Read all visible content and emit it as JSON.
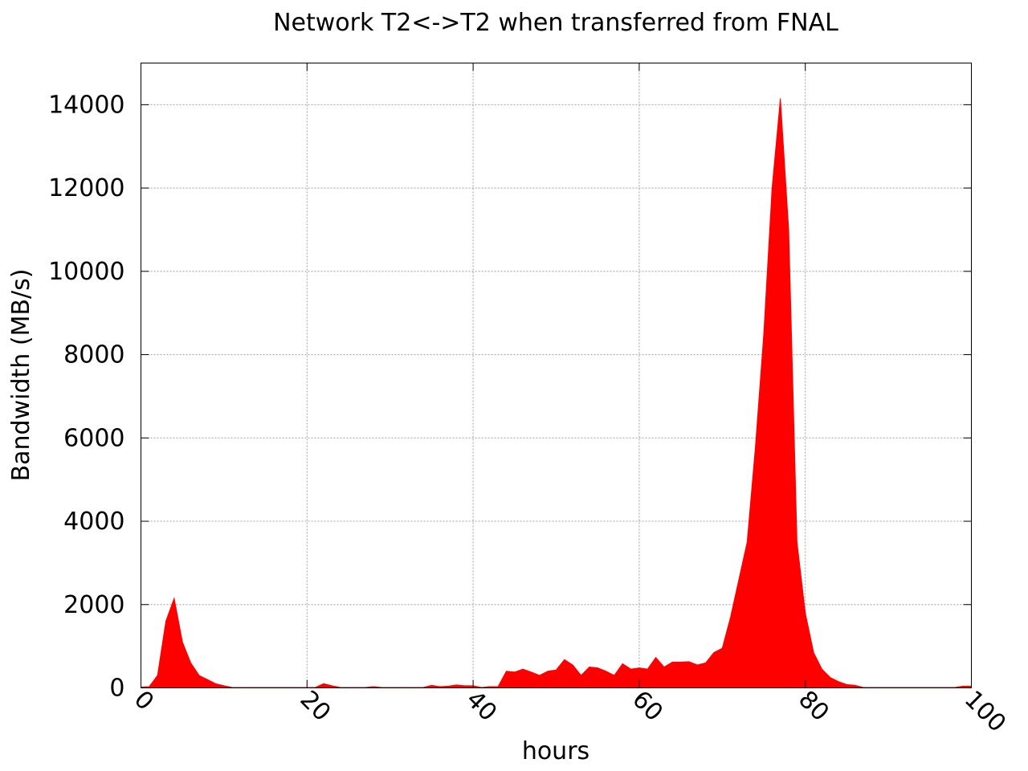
{
  "chart_data": {
    "type": "area",
    "title": "Network T2<->T2 when transferred from FNAL",
    "xlabel": "hours",
    "ylabel": "Bandwidth (MB/s)",
    "xlim": [
      0,
      100
    ],
    "ylim": [
      0,
      15000
    ],
    "xticks": [
      0,
      20,
      40,
      60,
      80,
      100
    ],
    "yticks": [
      0,
      2000,
      4000,
      6000,
      8000,
      10000,
      12000,
      14000
    ],
    "grid": true,
    "legend": "none",
    "series": [
      {
        "color": "#ff0000",
        "x": [
          0,
          1,
          2,
          3,
          4,
          5,
          6,
          7,
          8,
          9,
          10,
          11,
          12,
          13,
          14,
          15,
          16,
          17,
          18,
          19,
          20,
          21,
          22,
          23,
          24,
          25,
          26,
          27,
          28,
          29,
          30,
          31,
          32,
          33,
          34,
          35,
          36,
          37,
          38,
          39,
          40,
          41,
          42,
          43,
          44,
          45,
          46,
          47,
          48,
          49,
          50,
          51,
          52,
          53,
          54,
          55,
          56,
          57,
          58,
          59,
          60,
          61,
          62,
          63,
          64,
          65,
          66,
          67,
          68,
          69,
          70,
          71,
          72,
          73,
          74,
          75,
          76,
          77,
          78,
          79,
          80,
          81,
          82,
          83,
          84,
          85,
          86,
          87,
          88,
          89,
          90,
          91,
          92,
          93,
          94,
          95,
          96,
          97,
          98,
          99,
          100
        ],
        "values": [
          20,
          30,
          300,
          1600,
          2150,
          1100,
          600,
          300,
          200,
          100,
          50,
          10,
          10,
          10,
          10,
          10,
          10,
          10,
          10,
          10,
          10,
          10,
          100,
          50,
          10,
          10,
          10,
          10,
          30,
          10,
          10,
          10,
          10,
          10,
          10,
          60,
          30,
          40,
          70,
          50,
          50,
          10,
          30,
          30,
          400,
          380,
          450,
          380,
          300,
          400,
          430,
          680,
          550,
          300,
          500,
          480,
          400,
          300,
          580,
          450,
          480,
          450,
          730,
          500,
          620,
          620,
          630,
          550,
          600,
          850,
          950,
          1700,
          2600,
          3500,
          5800,
          8500,
          12000,
          14150,
          11000,
          3500,
          1800,
          850,
          450,
          250,
          150,
          80,
          60,
          10,
          10,
          10,
          10,
          10,
          10,
          10,
          10,
          10,
          10,
          10,
          10,
          40,
          40
        ]
      }
    ]
  }
}
